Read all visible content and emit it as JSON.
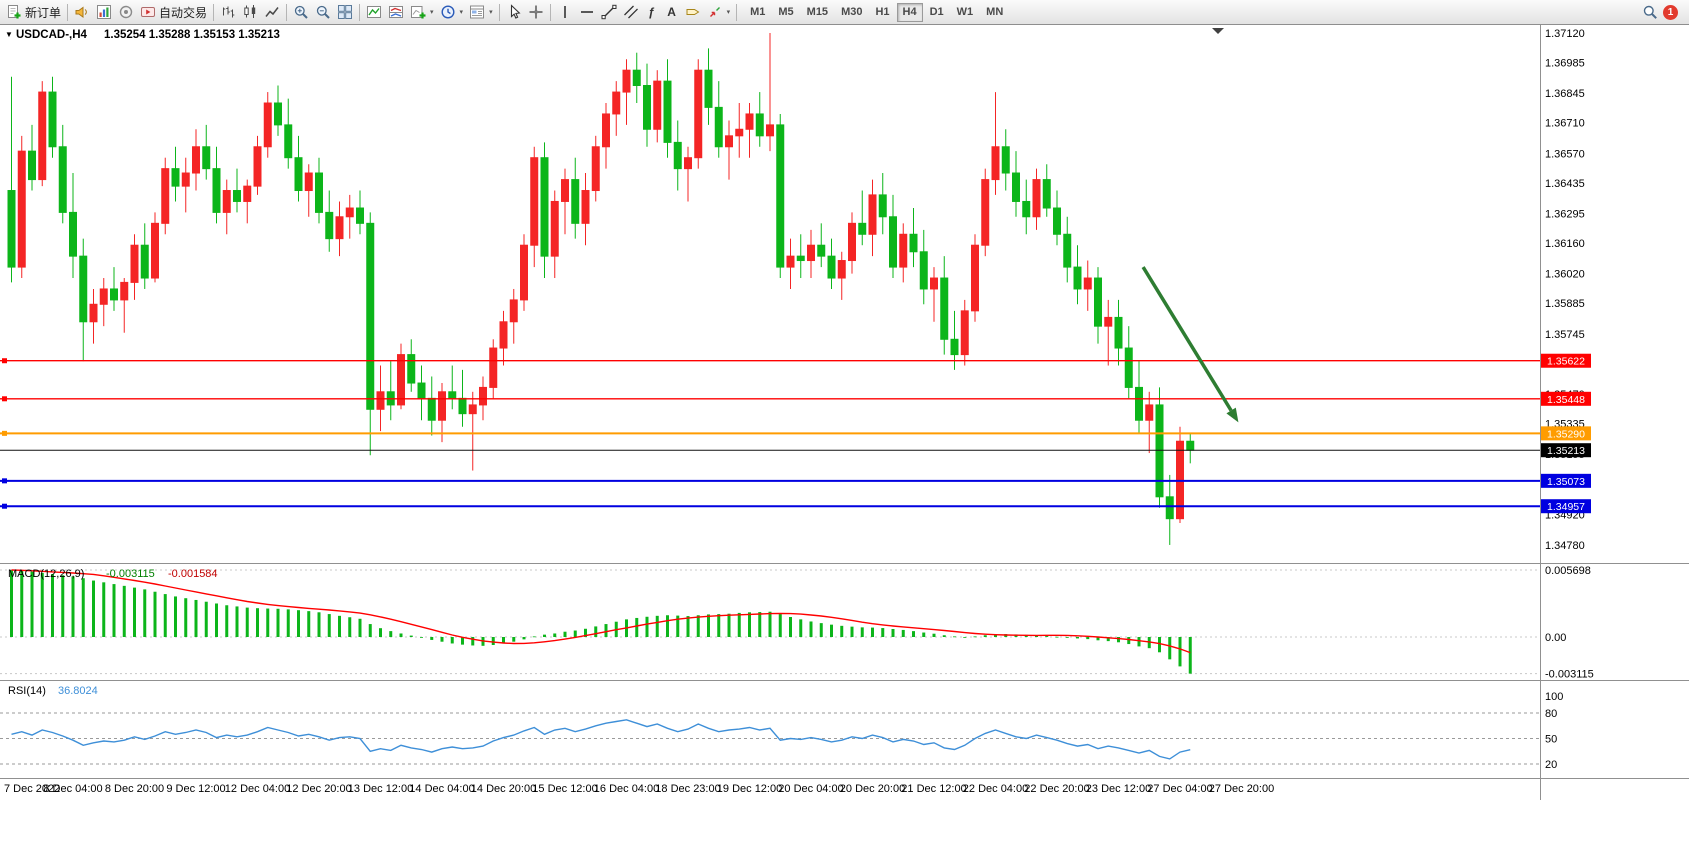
{
  "toolbar": {
    "new_order_label": "新订单",
    "autotrading_label": "自动交易",
    "timeframes": [
      "M1",
      "M5",
      "M15",
      "M30",
      "H1",
      "H4",
      "D1",
      "W1",
      "MN"
    ],
    "active_timeframe": "H4",
    "notification_count": "1"
  },
  "icons": {
    "caret": "▾",
    "fibonacci": "ƒ",
    "text_tool": "A",
    "title_collapse": "▼"
  },
  "chart_data": {
    "type": "candlestick",
    "symbol": "USDCAD-",
    "period": "H4",
    "ohlc_display": {
      "open": "1.35254",
      "high": "1.35288",
      "low": "1.35153",
      "close": "1.35213"
    },
    "colors": {
      "up": "#f42525",
      "down": "#0cb51a",
      "hline_red": "#ff0000",
      "hline_orange": "#ff9c00",
      "hline_blue": "#0000e0",
      "bid": "#111111",
      "arrow": "#2e7d32",
      "macd_hist": "#0cb51a",
      "macd_signal": "#ff0000",
      "rsi_line": "#3e8fd8"
    },
    "price_axis_labels": [
      "1.37120",
      "1.36985",
      "1.36845",
      "1.36710",
      "1.36570",
      "1.36435",
      "1.36295",
      "1.36160",
      "1.36020",
      "1.35885",
      "1.35745",
      "1.35610",
      "1.35470",
      "1.35335",
      "1.35195",
      "1.35060",
      "1.34920",
      "1.34780"
    ],
    "hlines": [
      {
        "name": "resistance-line-1",
        "price": 1.35622,
        "label": "1.35622",
        "color": "#ff0000",
        "width": 1.4,
        "marker": true
      },
      {
        "name": "resistance-line-2",
        "price": 1.35448,
        "label": "1.35448",
        "color": "#ff0000",
        "width": 1.4,
        "marker": true
      },
      {
        "name": "orange-level-line",
        "price": 1.3529,
        "label": "1.35290",
        "color": "#ff9c00",
        "width": 2,
        "marker": true
      },
      {
        "name": "bid-price-line",
        "price": 1.35213,
        "label": "1.35213",
        "color": "#111111",
        "width": 1,
        "tag_bg": "#000000"
      },
      {
        "name": "support-line-1",
        "price": 1.35073,
        "label": "1.35073",
        "color": "#0000e0",
        "width": 2,
        "marker": true
      },
      {
        "name": "support-line-2",
        "price": 1.34957,
        "label": "1.34957",
        "color": "#0000e0",
        "width": 2,
        "marker": true
      }
    ],
    "arrow": {
      "from_index": 110.4,
      "from_price": 1.3605,
      "to_index": 119.7,
      "to_price": 1.3534
    },
    "candles_per_label": 6,
    "time_labels": [
      "7 Dec 2022",
      "8 Dec 04:00",
      "8 Dec 20:00",
      "9 Dec 12:00",
      "12 Dec 04:00",
      "12 Dec 20:00",
      "13 Dec 12:00",
      "14 Dec 04:00",
      "14 Dec 20:00",
      "15 Dec 12:00",
      "16 Dec 04:00",
      "18 Dec 23:00",
      "19 Dec 12:00",
      "20 Dec 04:00",
      "20 Dec 20:00",
      "21 Dec 12:00",
      "22 Dec 04:00",
      "22 Dec 20:00",
      "23 Dec 12:00",
      "27 Dec 04:00",
      "27 Dec 20:00"
    ],
    "candles": [
      [
        1.364,
        1.3692,
        1.3598,
        1.3605
      ],
      [
        1.3605,
        1.3665,
        1.36,
        1.3658
      ],
      [
        1.3658,
        1.367,
        1.364,
        1.3645
      ],
      [
        1.3645,
        1.369,
        1.3642,
        1.3685
      ],
      [
        1.3685,
        1.3692,
        1.3655,
        1.366
      ],
      [
        1.366,
        1.367,
        1.3625,
        1.363
      ],
      [
        1.363,
        1.3648,
        1.36,
        1.361
      ],
      [
        1.361,
        1.3618,
        1.3562,
        1.358
      ],
      [
        1.358,
        1.3595,
        1.357,
        1.3588
      ],
      [
        1.3588,
        1.36,
        1.3578,
        1.3595
      ],
      [
        1.3595,
        1.3605,
        1.3585,
        1.359
      ],
      [
        1.359,
        1.36,
        1.3575,
        1.3598
      ],
      [
        1.3598,
        1.362,
        1.359,
        1.3615
      ],
      [
        1.3615,
        1.3625,
        1.3595,
        1.36
      ],
      [
        1.36,
        1.363,
        1.3598,
        1.3625
      ],
      [
        1.3625,
        1.3655,
        1.362,
        1.365
      ],
      [
        1.365,
        1.366,
        1.3635,
        1.3642
      ],
      [
        1.3642,
        1.3655,
        1.363,
        1.3648
      ],
      [
        1.3648,
        1.3668,
        1.364,
        1.366
      ],
      [
        1.366,
        1.367,
        1.3645,
        1.365
      ],
      [
        1.365,
        1.366,
        1.3625,
        1.363
      ],
      [
        1.363,
        1.3645,
        1.362,
        1.364
      ],
      [
        1.364,
        1.365,
        1.363,
        1.3635
      ],
      [
        1.3635,
        1.3645,
        1.3625,
        1.3642
      ],
      [
        1.3642,
        1.3665,
        1.3638,
        1.366
      ],
      [
        1.366,
        1.3685,
        1.3655,
        1.368
      ],
      [
        1.368,
        1.3688,
        1.3665,
        1.367
      ],
      [
        1.367,
        1.3682,
        1.365,
        1.3655
      ],
      [
        1.3655,
        1.3665,
        1.3635,
        1.364
      ],
      [
        1.364,
        1.3652,
        1.3628,
        1.3648
      ],
      [
        1.3648,
        1.3655,
        1.3625,
        1.363
      ],
      [
        1.363,
        1.364,
        1.3612,
        1.3618
      ],
      [
        1.3618,
        1.3635,
        1.361,
        1.3628
      ],
      [
        1.3628,
        1.3638,
        1.3618,
        1.3632
      ],
      [
        1.3632,
        1.364,
        1.362,
        1.3625
      ],
      [
        1.3625,
        1.363,
        1.3519,
        1.354
      ],
      [
        1.354,
        1.356,
        1.353,
        1.3548
      ],
      [
        1.3548,
        1.3562,
        1.3535,
        1.3542
      ],
      [
        1.3542,
        1.357,
        1.354,
        1.3565
      ],
      [
        1.3565,
        1.3572,
        1.3548,
        1.3552
      ],
      [
        1.3552,
        1.356,
        1.3535,
        1.3545
      ],
      [
        1.3545,
        1.3555,
        1.3528,
        1.3535
      ],
      [
        1.3535,
        1.3552,
        1.3525,
        1.3548
      ],
      [
        1.3548,
        1.356,
        1.354,
        1.3545
      ],
      [
        1.3545,
        1.3558,
        1.3532,
        1.3538
      ],
      [
        1.3538,
        1.3548,
        1.3512,
        1.3542
      ],
      [
        1.3542,
        1.3555,
        1.3535,
        1.355
      ],
      [
        1.355,
        1.3572,
        1.3545,
        1.3568
      ],
      [
        1.3568,
        1.3585,
        1.356,
        1.358
      ],
      [
        1.358,
        1.3595,
        1.357,
        1.359
      ],
      [
        1.359,
        1.362,
        1.3585,
        1.3615
      ],
      [
        1.3615,
        1.366,
        1.3605,
        1.3655
      ],
      [
        1.3655,
        1.3662,
        1.36,
        1.361
      ],
      [
        1.361,
        1.364,
        1.36,
        1.3635
      ],
      [
        1.3635,
        1.365,
        1.362,
        1.3645
      ],
      [
        1.3645,
        1.3655,
        1.3618,
        1.3625
      ],
      [
        1.3625,
        1.3648,
        1.3615,
        1.364
      ],
      [
        1.364,
        1.3665,
        1.3635,
        1.366
      ],
      [
        1.366,
        1.368,
        1.365,
        1.3675
      ],
      [
        1.3675,
        1.369,
        1.3665,
        1.3685
      ],
      [
        1.3685,
        1.37,
        1.367,
        1.3695
      ],
      [
        1.3695,
        1.3703,
        1.368,
        1.3688
      ],
      [
        1.3688,
        1.3698,
        1.366,
        1.3668
      ],
      [
        1.3668,
        1.3695,
        1.3662,
        1.369
      ],
      [
        1.369,
        1.37,
        1.3655,
        1.3662
      ],
      [
        1.3662,
        1.3672,
        1.364,
        1.365
      ],
      [
        1.365,
        1.366,
        1.3635,
        1.3655
      ],
      [
        1.3655,
        1.37,
        1.365,
        1.3695
      ],
      [
        1.3695,
        1.3705,
        1.367,
        1.3678
      ],
      [
        1.3678,
        1.369,
        1.3655,
        1.366
      ],
      [
        1.366,
        1.3672,
        1.3645,
        1.3665
      ],
      [
        1.3665,
        1.368,
        1.3655,
        1.3668
      ],
      [
        1.3668,
        1.368,
        1.3655,
        1.3675
      ],
      [
        1.3675,
        1.3685,
        1.366,
        1.3665
      ],
      [
        1.3665,
        1.3712,
        1.3658,
        1.367
      ],
      [
        1.367,
        1.3675,
        1.36,
        1.3605
      ],
      [
        1.3605,
        1.3618,
        1.3595,
        1.361
      ],
      [
        1.361,
        1.362,
        1.36,
        1.3608
      ],
      [
        1.3608,
        1.3622,
        1.36,
        1.3615
      ],
      [
        1.3615,
        1.3625,
        1.3605,
        1.361
      ],
      [
        1.361,
        1.3618,
        1.3595,
        1.36
      ],
      [
        1.36,
        1.3612,
        1.359,
        1.3608
      ],
      [
        1.3608,
        1.363,
        1.3602,
        1.3625
      ],
      [
        1.3625,
        1.364,
        1.3615,
        1.362
      ],
      [
        1.362,
        1.3645,
        1.361,
        1.3638
      ],
      [
        1.3638,
        1.3648,
        1.362,
        1.3628
      ],
      [
        1.3628,
        1.3638,
        1.36,
        1.3605
      ],
      [
        1.3605,
        1.3625,
        1.3598,
        1.362
      ],
      [
        1.362,
        1.3632,
        1.3605,
        1.3612
      ],
      [
        1.3612,
        1.3622,
        1.3588,
        1.3595
      ],
      [
        1.3595,
        1.3605,
        1.358,
        1.36
      ],
      [
        1.36,
        1.361,
        1.3565,
        1.3572
      ],
      [
        1.3572,
        1.3585,
        1.3558,
        1.3565
      ],
      [
        1.3565,
        1.359,
        1.356,
        1.3585
      ],
      [
        1.3585,
        1.362,
        1.358,
        1.3615
      ],
      [
        1.3615,
        1.365,
        1.361,
        1.3645
      ],
      [
        1.3645,
        1.3685,
        1.3638,
        1.366
      ],
      [
        1.366,
        1.3668,
        1.364,
        1.3648
      ],
      [
        1.3648,
        1.3658,
        1.3628,
        1.3635
      ],
      [
        1.3635,
        1.3645,
        1.362,
        1.3628
      ],
      [
        1.3628,
        1.365,
        1.3622,
        1.3645
      ],
      [
        1.3645,
        1.3652,
        1.3628,
        1.3632
      ],
      [
        1.3632,
        1.364,
        1.3615,
        1.362
      ],
      [
        1.362,
        1.3628,
        1.3598,
        1.3605
      ],
      [
        1.3605,
        1.3615,
        1.3588,
        1.3595
      ],
      [
        1.3595,
        1.3608,
        1.3585,
        1.36
      ],
      [
        1.36,
        1.3605,
        1.357,
        1.3578
      ],
      [
        1.3578,
        1.359,
        1.356,
        1.3582
      ],
      [
        1.3582,
        1.359,
        1.356,
        1.3568
      ],
      [
        1.3568,
        1.3578,
        1.3545,
        1.355
      ],
      [
        1.355,
        1.3562,
        1.3529,
        1.3535
      ],
      [
        1.3535,
        1.3548,
        1.352,
        1.3542
      ],
      [
        1.3542,
        1.355,
        1.3495,
        1.35
      ],
      [
        1.35,
        1.351,
        1.3478,
        1.349
      ],
      [
        1.349,
        1.3532,
        1.3488,
        1.35254
      ],
      [
        1.35254,
        1.35288,
        1.35153,
        1.35213
      ]
    ],
    "macd": {
      "label": "MACD(12,26,9)",
      "main_value": "-0.003115",
      "signal_value": "-0.001584",
      "axis_labels": [
        "0.005698",
        "0.00",
        "-0.003115"
      ],
      "axis_max": 0.005698,
      "axis_min": -0.003115,
      "histogram": [
        0.005698,
        0.00565,
        0.00555,
        0.00545,
        0.00535,
        0.00525,
        0.00515,
        0.005,
        0.0048,
        0.00465,
        0.0045,
        0.00435,
        0.0042,
        0.00405,
        0.00385,
        0.00365,
        0.00345,
        0.0033,
        0.00315,
        0.003,
        0.00285,
        0.0027,
        0.0026,
        0.0025,
        0.00245,
        0.00242,
        0.0024,
        0.00235,
        0.00228,
        0.0022,
        0.0021,
        0.00195,
        0.0018,
        0.00168,
        0.00155,
        0.0011,
        0.00075,
        0.0005,
        0.0003,
        0.00012,
        -5e-05,
        -0.00025,
        -0.0004,
        -0.00055,
        -0.00065,
        -0.00072,
        -0.00075,
        -0.00068,
        -0.00055,
        -0.0004,
        -0.0002,
        5e-05,
        0.0002,
        0.0003,
        0.00045,
        0.00055,
        0.0007,
        0.0009,
        0.0011,
        0.0013,
        0.0015,
        0.00162,
        0.00172,
        0.0018,
        0.00185,
        0.00182,
        0.00178,
        0.00185,
        0.00192,
        0.00195,
        0.00198,
        0.00205,
        0.0021,
        0.00212,
        0.00215,
        0.00195,
        0.0017,
        0.0015,
        0.00132,
        0.00118,
        0.00105,
        0.00095,
        0.00088,
        0.00082,
        0.0008,
        0.00076,
        0.00068,
        0.0006,
        0.0005,
        0.00038,
        0.00028,
        0.00015,
        5e-05,
        0.0,
        5e-05,
        0.00015,
        0.00022,
        0.00025,
        0.00022,
        0.00018,
        0.00012,
        8e-05,
        2e-05,
        -5e-05,
        -0.00012,
        -0.00018,
        -0.00028,
        -0.00035,
        -0.00045,
        -0.0006,
        -0.0008,
        -0.00095,
        -0.0013,
        -0.0019,
        -0.0025,
        -0.003115
      ],
      "signal_period": 9
    },
    "rsi": {
      "label": "RSI(14)",
      "value": "36.8024",
      "levels": [
        80,
        50,
        20
      ],
      "axis_labels": [
        "100",
        "80",
        "50",
        "20"
      ],
      "values": [
        55,
        58,
        54,
        60,
        57,
        53,
        48,
        42,
        45,
        47,
        46,
        48,
        52,
        49,
        53,
        58,
        55,
        57,
        60,
        57,
        51,
        54,
        52,
        54,
        58,
        63,
        60,
        57,
        53,
        55,
        52,
        48,
        51,
        52,
        50,
        35,
        38,
        36,
        42,
        39,
        37,
        34,
        38,
        40,
        38,
        39,
        41,
        47,
        51,
        54,
        59,
        63,
        55,
        60,
        62,
        58,
        61,
        65,
        68,
        70,
        72,
        68,
        64,
        67,
        62,
        58,
        61,
        67,
        62,
        58,
        60,
        61,
        63,
        60,
        62,
        48,
        50,
        49,
        51,
        49,
        46,
        48,
        52,
        50,
        54,
        51,
        46,
        49,
        47,
        43,
        45,
        39,
        37,
        42,
        50,
        56,
        60,
        56,
        52,
        50,
        54,
        51,
        48,
        44,
        41,
        43,
        38,
        41,
        39,
        36,
        33,
        36,
        29,
        26,
        34,
        36.8
      ]
    }
  }
}
